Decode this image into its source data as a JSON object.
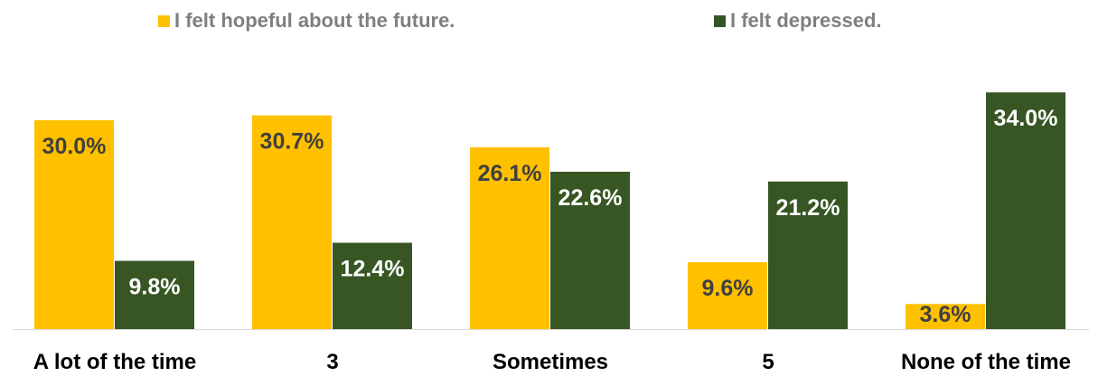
{
  "chart_data": {
    "type": "bar",
    "categories": [
      "A lot of the time",
      "3",
      "Sometimes",
      "5",
      "None of the time"
    ],
    "series": [
      {
        "name": "I felt hopeful about the future.",
        "values": [
          30.0,
          30.7,
          26.1,
          9.6,
          3.6
        ],
        "labels": [
          "30.0%",
          "30.7%",
          "26.1%",
          "9.6%",
          "3.6%"
        ],
        "color": "#FFC000",
        "label_color": "#404040"
      },
      {
        "name": "I felt depressed.",
        "values": [
          9.8,
          12.4,
          22.6,
          21.2,
          34.0
        ],
        "labels": [
          "9.8%",
          "12.4%",
          "22.6%",
          "21.2%",
          "34.0%"
        ],
        "color": "#375623",
        "label_color": "#ffffff"
      }
    ],
    "ylim": [
      0,
      36
    ],
    "legend_position": "top",
    "grid": false,
    "title": "",
    "xlabel": "",
    "ylabel": ""
  }
}
